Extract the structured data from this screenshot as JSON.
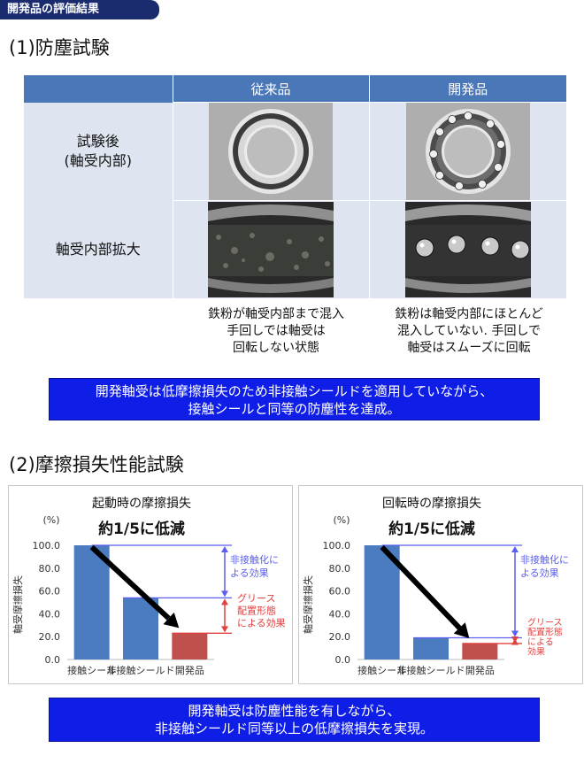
{
  "header_tag": "開発品の評価結果",
  "section1": {
    "title": "(1)防塵試験",
    "columns": [
      "従来品",
      "開発品"
    ],
    "rows": [
      {
        "label_lines": [
          "試験後",
          "(軸受内部)"
        ]
      },
      {
        "label_lines": [
          "軸受内部拡大"
        ]
      }
    ],
    "captions": [
      [
        "鉄粉が軸受内部まで混入",
        "手回しでは軸受は",
        "回転しない状態"
      ],
      [
        "鉄粉は軸受内部にほとんど",
        "混入していない.  手回しで",
        "軸受はスムーズに回転"
      ]
    ],
    "conclusion": [
      "開発軸受は低摩擦損失のため非接触シールドを適用していながら、",
      "接触シールと同等の防塵性を達成。"
    ]
  },
  "section2": {
    "title": "(2)摩擦損失性能試験",
    "conclusion": [
      "開発軸受は防塵性能を有しながら、",
      "非接触シールド同等以上の低摩擦損失を実現。"
    ]
  },
  "chart_data": [
    {
      "type": "bar",
      "title": "起動時の摩擦損失",
      "subtitle": "約1/5に低減",
      "unit_label": "(%)",
      "ylabel": "軸受摩擦損失",
      "categories": [
        "接触シール",
        "非接触シールド",
        "開発品"
      ],
      "values": [
        100.0,
        54.0,
        23.0
      ],
      "ylim": [
        0,
        100
      ],
      "yticks": [
        "0.0",
        "20.0",
        "40.0",
        "60.0",
        "80.0",
        "100.0"
      ],
      "bar_colors": [
        "#4a7cbf",
        "#4a7cbf",
        "#c0504d"
      ],
      "annotations": [
        {
          "lines": [
            "非接触化に",
            "よる効果"
          ],
          "color": "#5b5ef0"
        },
        {
          "lines": [
            "グリース",
            "配置形態",
            "による効果"
          ],
          "color": "#e0403f"
        }
      ]
    },
    {
      "type": "bar",
      "title": "回転時の摩擦損失",
      "subtitle": "約1/5に低減",
      "unit_label": "(%)",
      "ylabel": "軸受摩擦損失",
      "categories": [
        "接触シール",
        "非接触シールド",
        "開発品"
      ],
      "values": [
        100.0,
        19.0,
        14.0
      ],
      "ylim": [
        0,
        100
      ],
      "yticks": [
        "0.0",
        "20.0",
        "40.0",
        "60.0",
        "80.0",
        "100.0"
      ],
      "bar_colors": [
        "#4a7cbf",
        "#4a7cbf",
        "#c0504d"
      ],
      "annotations": [
        {
          "lines": [
            "非接触化に",
            "よる効果"
          ],
          "color": "#5b5ef0"
        },
        {
          "lines": [
            "グリース",
            "配置形態",
            "による",
            "効果"
          ],
          "color": "#e0403f"
        }
      ]
    }
  ]
}
